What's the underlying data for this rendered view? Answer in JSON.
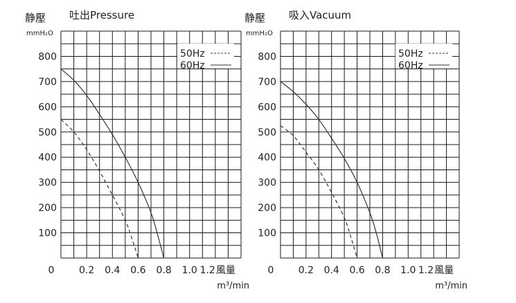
{
  "chart_data": [
    {
      "type": "line",
      "title": "吐出Pressure",
      "ylabel": "静壓",
      "yunit": "mmH₂O",
      "xlabel": "風量",
      "xunit": "m³/min",
      "xlim": [
        0,
        1.4
      ],
      "ylim": [
        0,
        900
      ],
      "x_ticks": [
        {
          "v": 0.2,
          "label": "0.2"
        },
        {
          "v": 0.4,
          "label": "0.4"
        },
        {
          "v": 0.6,
          "label": "0.6"
        },
        {
          "v": 0.8,
          "label": "0.8"
        },
        {
          "v": 1.0,
          "label": "1.0"
        },
        {
          "v": 1.2,
          "label": "1.2"
        }
      ],
      "y_ticks": [
        100,
        200,
        300,
        400,
        500,
        600,
        700,
        800
      ],
      "origin_label": "0",
      "grid": true,
      "legend_position": "top-right",
      "series": [
        {
          "name": "50Hz",
          "style": "dashed",
          "x": [
            0,
            0.1,
            0.2,
            0.3,
            0.4,
            0.5,
            0.55,
            0.6
          ],
          "y": [
            550,
            500,
            430,
            345,
            250,
            150,
            80,
            0
          ]
        },
        {
          "name": "60Hz",
          "style": "solid",
          "x": [
            0,
            0.1,
            0.2,
            0.3,
            0.4,
            0.5,
            0.6,
            0.7,
            0.75,
            0.8
          ],
          "y": [
            750,
            705,
            645,
            570,
            490,
            400,
            300,
            180,
            95,
            0
          ]
        }
      ]
    },
    {
      "type": "line",
      "title": "吸入Vacuum",
      "ylabel": "静壓",
      "yunit": "mmH₂O",
      "xlabel": "風量",
      "xunit": "m³/min",
      "xlim": [
        0,
        1.4
      ],
      "ylim": [
        0,
        900
      ],
      "x_ticks": [
        {
          "v": 0.2,
          "label": "0.2"
        },
        {
          "v": 0.4,
          "label": "0.4"
        },
        {
          "v": 0.6,
          "label": "0.6"
        },
        {
          "v": 0.8,
          "label": "0.8"
        },
        {
          "v": 1.0,
          "label": "1.0"
        },
        {
          "v": 1.2,
          "label": "1.2"
        }
      ],
      "y_ticks": [
        100,
        200,
        300,
        400,
        500,
        600,
        700,
        800
      ],
      "origin_label": "0",
      "grid": true,
      "legend_position": "top-right",
      "series": [
        {
          "name": "50Hz",
          "style": "dashed",
          "x": [
            0,
            0.1,
            0.2,
            0.3,
            0.4,
            0.5,
            0.55,
            0.6
          ],
          "y": [
            525,
            485,
            420,
            350,
            260,
            160,
            85,
            0
          ]
        },
        {
          "name": "60Hz",
          "style": "solid",
          "x": [
            0,
            0.1,
            0.2,
            0.3,
            0.4,
            0.5,
            0.6,
            0.7,
            0.75,
            0.8
          ],
          "y": [
            700,
            660,
            610,
            550,
            475,
            395,
            300,
            180,
            100,
            0
          ]
        }
      ]
    }
  ]
}
